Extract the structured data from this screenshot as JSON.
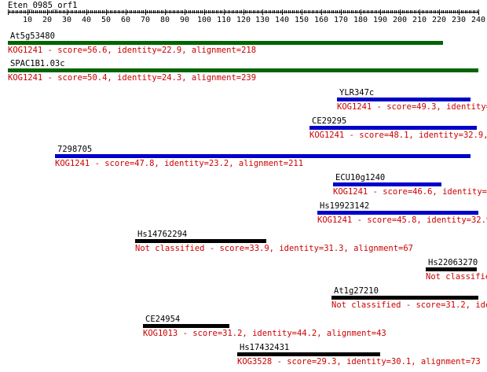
{
  "query": {
    "name": "Eten_0985_orf1",
    "length": 240,
    "axis_labels": [
      "10",
      "20",
      "30",
      "40",
      "50",
      "60",
      "70",
      "80",
      "90",
      "100",
      "110",
      "120",
      "130",
      "140",
      "150",
      "160",
      "170",
      "180",
      "190",
      "200",
      "210",
      "220",
      "230",
      "240"
    ]
  },
  "colors": {
    "green": "#006400",
    "blue": "#0000c8",
    "black": "#000000",
    "label_red": "#cc0000"
  },
  "hits": [
    {
      "name": "At5g53480",
      "start": 1,
      "end": 222,
      "color": "green",
      "desc": "KOG1241 - score=56.6, identity=22.9, alignment=218"
    },
    {
      "name": "SPAC1B1.03c",
      "start": 1,
      "end": 240,
      "color": "green",
      "desc": "KOG1241 - score=50.4, identity=24.3, alignment=239"
    },
    {
      "name": "YLR347c",
      "start": 169,
      "end": 236,
      "color": "blue",
      "desc": "KOG1241 - score=49.3, identity=3"
    },
    {
      "name": "CE29295",
      "start": 155,
      "end": 239,
      "color": "blue",
      "desc": "KOG1241 - score=48.1, identity=32.9, a"
    },
    {
      "name": "7298705",
      "start": 25,
      "end": 236,
      "color": "blue",
      "desc": "KOG1241 - score=47.8, identity=23.2, alignment=211"
    },
    {
      "name": "ECU10g1240",
      "start": 167,
      "end": 221,
      "color": "blue",
      "desc": "KOG1241 - score=46.6, identity=38"
    },
    {
      "name": "Hs19923142",
      "start": 159,
      "end": 240,
      "color": "blue",
      "desc": "KOG1241 - score=45.8, identity=32.9,"
    },
    {
      "name": "Hs14762294",
      "start": 66,
      "end": 132,
      "color": "black",
      "desc": "Not classified - score=33.9, identity=31.3, alignment=67"
    },
    {
      "name": "Hs22063270",
      "start": 214,
      "end": 239,
      "color": "black",
      "desc": "Not classifie"
    },
    {
      "name": "At1g27210",
      "start": 166,
      "end": 240,
      "color": "black",
      "desc": "Not classified - score=31.2, ident"
    },
    {
      "name": "CE24954",
      "start": 70,
      "end": 113,
      "color": "black",
      "desc": "KOG1013 - score=31.2, identity=44.2, alignment=43"
    },
    {
      "name": "Hs17432431",
      "start": 118,
      "end": 190,
      "color": "black",
      "desc": "KOG3528 - score=29.3, identity=30.1, alignment=73"
    }
  ]
}
